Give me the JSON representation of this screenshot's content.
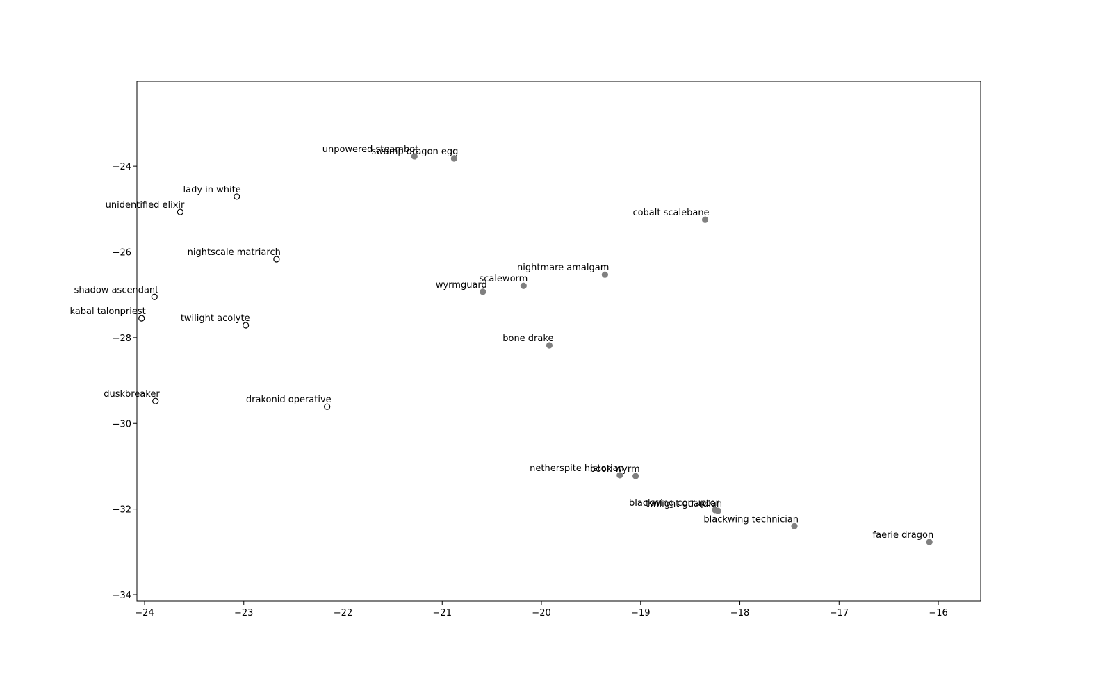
{
  "chart_data": {
    "type": "scatter",
    "xlim": [
      -24.077,
      -15.573
    ],
    "ylim": [
      -34.146,
      -22.02
    ],
    "xticks": [
      {
        "value": -24,
        "label": "−24"
      },
      {
        "value": -23,
        "label": "−23"
      },
      {
        "value": -22,
        "label": "−22"
      },
      {
        "value": -21,
        "label": "−21"
      },
      {
        "value": -20,
        "label": "−20"
      },
      {
        "value": -19,
        "label": "−19"
      },
      {
        "value": -18,
        "label": "−18"
      },
      {
        "value": -17,
        "label": "−17"
      },
      {
        "value": -16,
        "label": "−16"
      }
    ],
    "yticks": [
      {
        "value": -24,
        "label": "−24"
      },
      {
        "value": -26,
        "label": "−26"
      },
      {
        "value": -28,
        "label": "−28"
      },
      {
        "value": -30,
        "label": "−30"
      },
      {
        "value": -32,
        "label": "−32"
      },
      {
        "value": -34,
        "label": "−34"
      }
    ],
    "series": [
      {
        "color": "#ffffff",
        "edge_color": "#000000",
        "labels": [
          "unidentified elixir",
          "lady in white",
          "nightscale matriarch",
          "shadow ascendant",
          "kabal talonpriest",
          "twilight acolyte",
          "duskbreaker",
          "drakonid operative"
        ],
        "x": [
          -23.64,
          -23.07,
          -22.67,
          -23.9,
          -24.03,
          -22.98,
          -23.89,
          -22.16
        ],
        "y": [
          -25.07,
          -24.71,
          -26.17,
          -27.05,
          -27.55,
          -27.71,
          -29.48,
          -29.61
        ]
      },
      {
        "color": "#808080",
        "edge_color": "#808080",
        "labels": [
          "unpowered steambot",
          "swamp dragon egg",
          "cobalt scalebane",
          "nightmare amalgam",
          "scaleworm",
          "wyrmguard",
          "bone drake",
          "netherspite historian",
          "book wyrm",
          "blackwing corruptor",
          "twilight guardian",
          "blackwing technician",
          "faerie dragon"
        ],
        "x": [
          -21.28,
          -20.88,
          -18.35,
          -19.36,
          -20.18,
          -20.59,
          -19.92,
          -19.21,
          -19.05,
          -18.25,
          -18.22,
          -17.45,
          -16.09
        ],
        "y": [
          -23.77,
          -23.82,
          -25.25,
          -26.53,
          -26.79,
          -26.93,
          -28.18,
          -31.21,
          -31.23,
          -32.02,
          -32.04,
          -32.4,
          -32.77
        ]
      }
    ]
  }
}
